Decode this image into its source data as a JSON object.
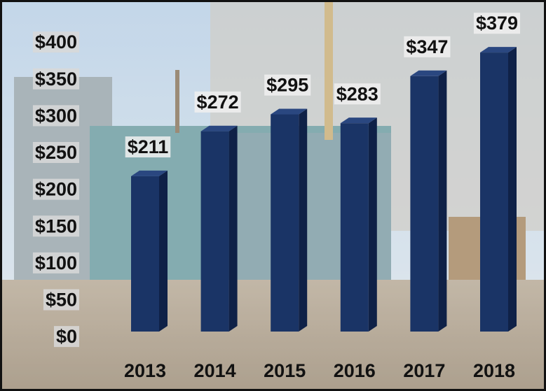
{
  "chart_data": {
    "type": "bar",
    "categories": [
      "2013",
      "2014",
      "2015",
      "2016",
      "2017",
      "2018"
    ],
    "values": [
      211,
      272,
      295,
      283,
      347,
      379
    ],
    "value_labels": [
      "$211",
      "$272",
      "$295",
      "$283",
      "$347",
      "$379"
    ],
    "color": "#1a3466",
    "ylim": [
      0,
      400
    ],
    "yticks": [
      {
        "value": 0,
        "label": "$0"
      },
      {
        "value": 50,
        "label": "$50"
      },
      {
        "value": 100,
        "label": "$100"
      },
      {
        "value": 150,
        "label": "$150"
      },
      {
        "value": 200,
        "label": "$200"
      },
      {
        "value": 250,
        "label": "$250"
      },
      {
        "value": 300,
        "label": "$300"
      },
      {
        "value": 350,
        "label": "$350"
      },
      {
        "value": 400,
        "label": "$400"
      }
    ],
    "grid": false
  }
}
